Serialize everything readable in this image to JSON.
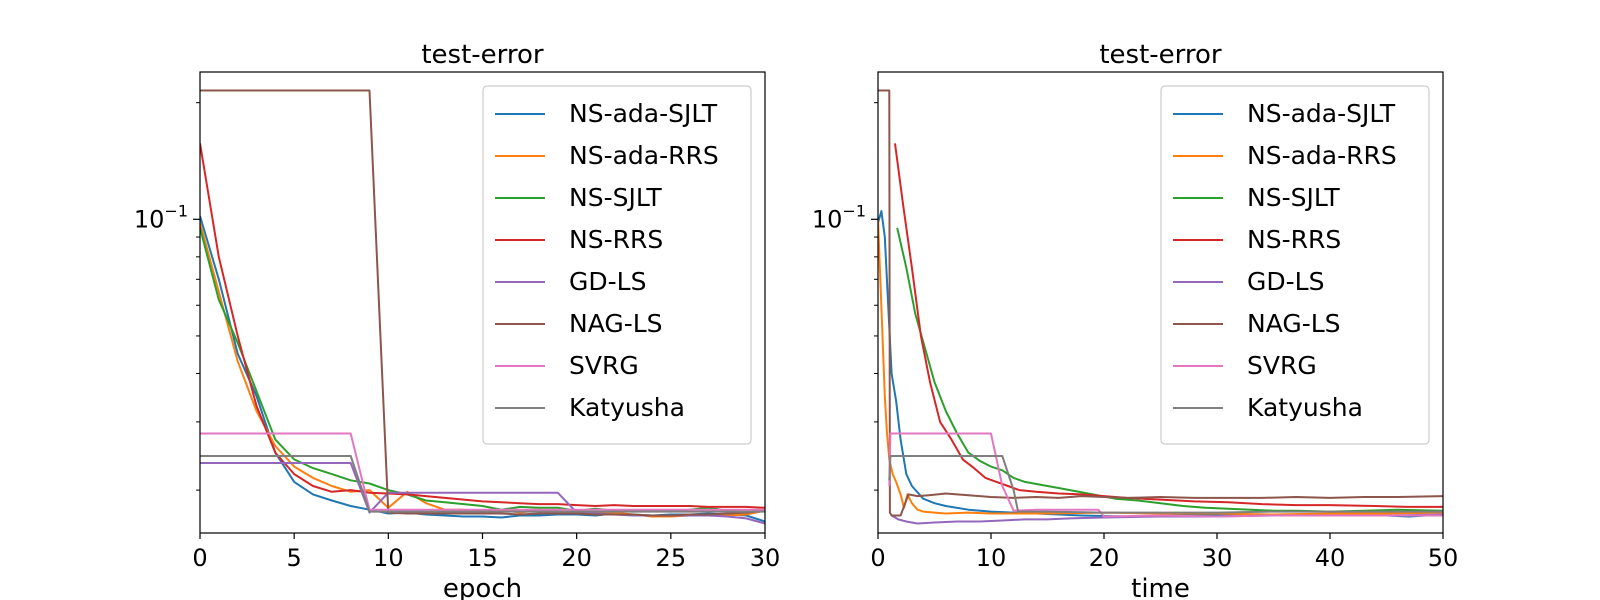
{
  "chart_data": [
    {
      "type": "line",
      "title": "test-error",
      "xlabel": "epoch",
      "ylabel": "",
      "xscale": "linear",
      "yscale": "log",
      "xlim": [
        0,
        30
      ],
      "ylim": [
        0.0155,
        0.24
      ],
      "xticks": [
        0,
        5,
        10,
        15,
        20,
        25,
        30
      ],
      "xtick_labels": [
        "0",
        "5",
        "10",
        "15",
        "20",
        "25",
        "30"
      ],
      "ytick_label": "10",
      "ytick_exp": "−1",
      "legend_position": "upper right",
      "series": [
        {
          "name": "NS-ada-SJLT",
          "color": "#1f77b4",
          "x": [
            0,
            1,
            2,
            3,
            4,
            5,
            6,
            7,
            8,
            9,
            10,
            11,
            12,
            13,
            14,
            15,
            16,
            17,
            18,
            19,
            20,
            21,
            22,
            23,
            24,
            25,
            26,
            27,
            28,
            29,
            30
          ],
          "y": [
            0.102,
            0.07,
            0.045,
            0.035,
            0.025,
            0.021,
            0.0195,
            0.0188,
            0.0182,
            0.0178,
            0.0174,
            0.0175,
            0.0173,
            0.0172,
            0.0171,
            0.0171,
            0.017,
            0.0172,
            0.0172,
            0.0173,
            0.0173,
            0.0172,
            0.0174,
            0.0173,
            0.0172,
            0.0173,
            0.0173,
            0.0174,
            0.0173,
            0.0172,
            0.0166
          ]
        },
        {
          "name": "NS-ada-RRS",
          "color": "#ff7f0e",
          "x": [
            0,
            1,
            2,
            3,
            4,
            5,
            6,
            7,
            8,
            9,
            10,
            11,
            12,
            13,
            14,
            15,
            16,
            17,
            18,
            19,
            20,
            21,
            22,
            23,
            24,
            25,
            26,
            27,
            28,
            29,
            30
          ],
          "y": [
            0.098,
            0.065,
            0.043,
            0.032,
            0.026,
            0.023,
            0.0215,
            0.0205,
            0.0198,
            0.02,
            0.018,
            0.0198,
            0.0185,
            0.0178,
            0.0178,
            0.0176,
            0.0178,
            0.0175,
            0.0178,
            0.0176,
            0.0175,
            0.0174,
            0.0175,
            0.0173,
            0.0171,
            0.0171,
            0.0172,
            0.0173,
            0.0172,
            0.0173,
            0.0177
          ]
        },
        {
          "name": "NS-SJLT",
          "color": "#2ca02c",
          "x": [
            0,
            1,
            2,
            3,
            4,
            5,
            6,
            7,
            8,
            9,
            10,
            11,
            12,
            13,
            14,
            15,
            16,
            17,
            18,
            19,
            20,
            21,
            22,
            23,
            24,
            25,
            26,
            27,
            28,
            29,
            30
          ],
          "y": [
            0.095,
            0.062,
            0.048,
            0.036,
            0.027,
            0.024,
            0.0228,
            0.022,
            0.0212,
            0.0208,
            0.02,
            0.0195,
            0.0188,
            0.0186,
            0.0184,
            0.0182,
            0.0178,
            0.0181,
            0.018,
            0.018,
            0.0177,
            0.0179,
            0.0177,
            0.0176,
            0.0177,
            0.0176,
            0.0178,
            0.018,
            0.0177,
            0.0175,
            0.0178
          ]
        },
        {
          "name": "NS-RRS",
          "color": "#d62728",
          "x": [
            0,
            1,
            2,
            3,
            4,
            5,
            6,
            7,
            8,
            9,
            10,
            11,
            12,
            13,
            14,
            15,
            16,
            17,
            18,
            19,
            20,
            21,
            22,
            23,
            24,
            25,
            26,
            27,
            28,
            29,
            30
          ],
          "y": [
            0.157,
            0.08,
            0.05,
            0.033,
            0.025,
            0.022,
            0.0205,
            0.0198,
            0.02,
            0.0197,
            0.0196,
            0.0195,
            0.0193,
            0.0191,
            0.0189,
            0.0187,
            0.0186,
            0.0185,
            0.0184,
            0.0184,
            0.0183,
            0.0182,
            0.0183,
            0.0182,
            0.0182,
            0.0182,
            0.0182,
            0.0181,
            0.0181,
            0.0181,
            0.018
          ]
        },
        {
          "name": "GD-LS",
          "color": "#9467bd",
          "x": [
            0,
            8,
            9,
            10,
            11,
            12,
            13,
            14,
            15,
            16,
            17,
            18,
            19,
            20,
            21,
            22,
            23,
            24,
            25,
            26,
            27,
            28,
            29,
            30
          ],
          "y": [
            0.0235,
            0.0235,
            0.0175,
            0.0197,
            0.0197,
            0.0197,
            0.0197,
            0.0197,
            0.0197,
            0.0197,
            0.0197,
            0.0197,
            0.0197,
            0.0175,
            0.0174,
            0.0173,
            0.0172,
            0.0172,
            0.0172,
            0.0172,
            0.0172,
            0.0171,
            0.0169,
            0.0164
          ]
        },
        {
          "name": "NAG-LS",
          "color": "#8c564b",
          "x": [
            0,
            9,
            10,
            11,
            12,
            13,
            14,
            15,
            16,
            17,
            18,
            19,
            20,
            21,
            22,
            23,
            24,
            25,
            26,
            27,
            28,
            29,
            30
          ],
          "y": [
            0.215,
            0.215,
            0.0175,
            0.0174,
            0.0174,
            0.0174,
            0.0174,
            0.0174,
            0.0174,
            0.0173,
            0.0174,
            0.0174,
            0.0174,
            0.0173,
            0.0173,
            0.0173,
            0.0172,
            0.0172,
            0.0173,
            0.0173,
            0.0174,
            0.0175,
            0.0177
          ]
        },
        {
          "name": "SVRG",
          "color": "#e377c2",
          "x": [
            0,
            8,
            9,
            10,
            30
          ],
          "y": [
            0.028,
            0.028,
            0.0178,
            0.0178,
            0.0178
          ]
        },
        {
          "name": "Katyusha",
          "color": "#7f7f7f",
          "x": [
            0,
            8,
            9,
            10,
            30
          ],
          "y": [
            0.0245,
            0.0245,
            0.0176,
            0.0176,
            0.0176
          ]
        }
      ]
    },
    {
      "type": "line",
      "title": "test-error",
      "xlabel": "time",
      "ylabel": "",
      "xscale": "linear",
      "yscale": "log",
      "xlim": [
        0,
        50
      ],
      "ylim": [
        0.0155,
        0.24
      ],
      "xticks": [
        0,
        10,
        20,
        30,
        40,
        50
      ],
      "xtick_labels": [
        "0",
        "10",
        "20",
        "30",
        "40",
        "50"
      ],
      "ytick_label": "10",
      "ytick_exp": "−1",
      "legend_position": "upper right",
      "series": [
        {
          "name": "NS-ada-SJLT",
          "color": "#1f77b4",
          "x": [
            0,
            0.3,
            0.6,
            0.9,
            1.2,
            1.6,
            2,
            2.5,
            3,
            4,
            5,
            6,
            8,
            10,
            14,
            18,
            22,
            26,
            30,
            35,
            40,
            45,
            47,
            50
          ],
          "y": [
            0.098,
            0.105,
            0.09,
            0.06,
            0.04,
            0.034,
            0.027,
            0.022,
            0.0205,
            0.019,
            0.0185,
            0.0182,
            0.0178,
            0.0176,
            0.0174,
            0.0172,
            0.0171,
            0.0172,
            0.0173,
            0.0172,
            0.0173,
            0.0172,
            0.0171,
            0.0173
          ]
        },
        {
          "name": "NS-ada-RRS",
          "color": "#ff7f0e",
          "x": [
            0,
            0.2,
            0.4,
            0.6,
            0.8,
            1,
            1.3,
            1.6,
            2,
            2.3,
            2.6,
            3,
            3.5,
            4,
            5,
            6,
            8,
            10,
            15,
            20,
            25,
            30,
            35,
            40,
            45,
            50
          ],
          "y": [
            0.1,
            0.07,
            0.05,
            0.035,
            0.028,
            0.024,
            0.022,
            0.021,
            0.0195,
            0.018,
            0.0195,
            0.0185,
            0.0178,
            0.0176,
            0.0175,
            0.0174,
            0.0175,
            0.0174,
            0.0174,
            0.0175,
            0.0174,
            0.0174,
            0.0173,
            0.0174,
            0.0174,
            0.0175
          ]
        },
        {
          "name": "NS-SJLT",
          "color": "#2ca02c",
          "x": [
            1.7,
            2.5,
            3.3,
            4.2,
            5,
            6,
            7,
            8,
            9,
            10,
            11,
            12,
            13,
            15,
            17,
            19,
            21,
            23,
            25,
            27,
            29,
            31,
            33,
            35,
            37,
            40,
            43,
            46,
            50
          ],
          "y": [
            0.095,
            0.075,
            0.057,
            0.046,
            0.038,
            0.032,
            0.028,
            0.025,
            0.0238,
            0.023,
            0.0225,
            0.0215,
            0.021,
            0.0205,
            0.02,
            0.0195,
            0.019,
            0.0188,
            0.0185,
            0.0182,
            0.018,
            0.0179,
            0.0178,
            0.0177,
            0.0177,
            0.0176,
            0.0177,
            0.0178,
            0.0177
          ]
        },
        {
          "name": "NS-RRS",
          "color": "#d62728",
          "x": [
            1.5,
            2.2,
            3,
            3.8,
            4.6,
            5.5,
            6.5,
            7.5,
            8.5,
            9.5,
            10.5,
            11.5,
            12.5,
            14,
            16,
            18,
            20,
            22,
            25,
            28,
            31,
            34,
            37,
            40,
            44,
            47,
            50
          ],
          "y": [
            0.157,
            0.11,
            0.075,
            0.05,
            0.038,
            0.03,
            0.027,
            0.024,
            0.0228,
            0.0215,
            0.021,
            0.0205,
            0.02,
            0.0198,
            0.0196,
            0.0195,
            0.0193,
            0.0191,
            0.0189,
            0.0187,
            0.0186,
            0.0184,
            0.0183,
            0.0183,
            0.0182,
            0.0181,
            0.0181
          ]
        },
        {
          "name": "GD-LS",
          "color": "#9467bd",
          "x": [
            1.2,
            1.8,
            2.5,
            3.5,
            5,
            7,
            9,
            11,
            13,
            15,
            17,
            20,
            25,
            30,
            35,
            40,
            45,
            50
          ],
          "y": [
            0.0172,
            0.0168,
            0.0166,
            0.0164,
            0.0165,
            0.0166,
            0.0166,
            0.0167,
            0.0168,
            0.0168,
            0.0169,
            0.017,
            0.0171,
            0.0171,
            0.0172,
            0.0172,
            0.0172,
            0.0173
          ]
        },
        {
          "name": "NAG-LS",
          "color": "#8c564b",
          "x": [
            0,
            1,
            1.05,
            1.2,
            2,
            2.7,
            3.5,
            4.5,
            6,
            8,
            10,
            12,
            14,
            16,
            18,
            20,
            22,
            25,
            28,
            31,
            34,
            37,
            40,
            43,
            46,
            50
          ],
          "y": [
            0.215,
            0.215,
            0.0175,
            0.0172,
            0.0172,
            0.0195,
            0.0193,
            0.0194,
            0.0196,
            0.0194,
            0.0192,
            0.0191,
            0.0192,
            0.0191,
            0.0193,
            0.0192,
            0.0191,
            0.0192,
            0.0191,
            0.0191,
            0.0191,
            0.0192,
            0.0191,
            0.0192,
            0.0192,
            0.0193
          ]
        },
        {
          "name": "SVRG",
          "color": "#e377c2",
          "x": [
            1,
            1.1,
            10,
            11,
            12,
            14,
            18,
            19.5,
            20,
            25,
            30,
            35,
            40,
            45,
            50
          ],
          "y": [
            0.0205,
            0.028,
            0.028,
            0.0205,
            0.0177,
            0.0178,
            0.0178,
            0.0178,
            0.0171,
            0.0172,
            0.0171,
            0.0172,
            0.0172,
            0.0172,
            0.0172
          ]
        },
        {
          "name": "Katyusha",
          "color": "#7f7f7f",
          "x": [
            1,
            1.1,
            11,
            12,
            12.4,
            15,
            20,
            25,
            30,
            35,
            40,
            45,
            50
          ],
          "y": [
            0.0212,
            0.0245,
            0.0245,
            0.02,
            0.0176,
            0.0176,
            0.0175,
            0.0175,
            0.0175,
            0.0176,
            0.0176,
            0.0176,
            0.0176
          ]
        }
      ]
    }
  ]
}
